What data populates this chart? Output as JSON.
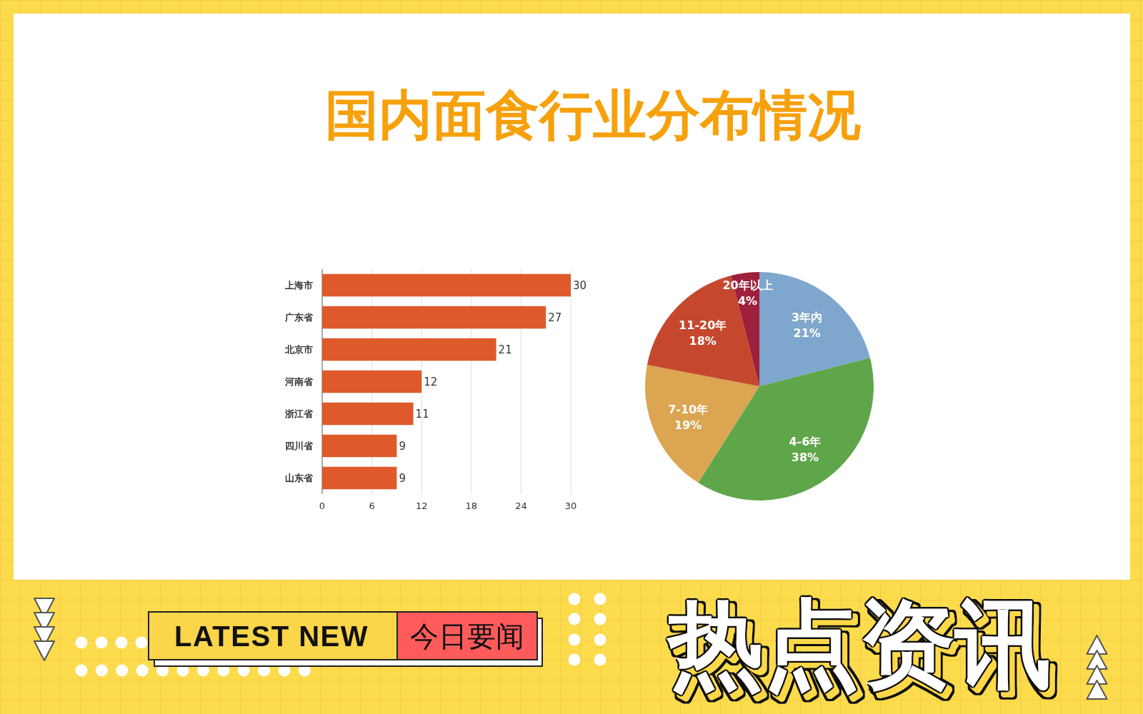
{
  "chart_data": [
    {
      "type": "other",
      "title": "国内面食行业分布情况"
    },
    {
      "type": "bar",
      "orientation": "horizontal",
      "categories": [
        "上海市",
        "广东省",
        "北京市",
        "河南省",
        "浙江省",
        "四川省",
        "山东省"
      ],
      "values": [
        30,
        27,
        21,
        12,
        11,
        9,
        9
      ],
      "color": "#df5a2b",
      "xlim": [
        0,
        30
      ],
      "xticks": [
        0,
        6,
        12,
        18,
        24,
        30
      ],
      "grid": "x",
      "data_labels": true
    },
    {
      "type": "pie",
      "categories": [
        "3年内",
        "4-6年",
        "7-10年",
        "11-20年",
        "20年以上"
      ],
      "values": [
        21,
        38,
        19,
        18,
        4
      ],
      "colors": [
        "#7fa6cc",
        "#5fa64a",
        "#dba551",
        "#c5482e",
        "#9f203c"
      ],
      "value_labels": [
        "21%",
        "38%",
        "19%",
        "18%",
        "4%"
      ]
    },
    {
      "type": "other",
      "annotations": [
        "LATEST NEW",
        "今日要闻",
        "热点资讯"
      ]
    }
  ]
}
